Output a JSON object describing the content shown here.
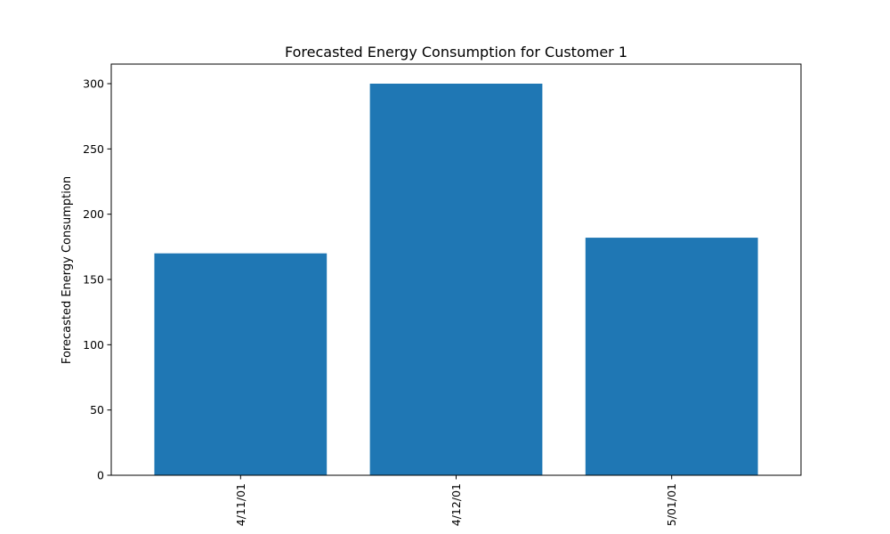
{
  "chart_data": {
    "type": "bar",
    "title": "Forecasted Energy Consumption for Customer 1",
    "xlabel": "",
    "ylabel": "Forecasted Energy Consumption",
    "categories": [
      "4/11/01",
      "4/12/01",
      "5/01/01"
    ],
    "values": [
      170,
      300,
      182
    ],
    "ylim": [
      0,
      315
    ],
    "yticks": [
      0,
      50,
      100,
      150,
      200,
      250,
      300
    ],
    "grid": false,
    "bar_color": "#1f77b4",
    "legend": "none"
  }
}
